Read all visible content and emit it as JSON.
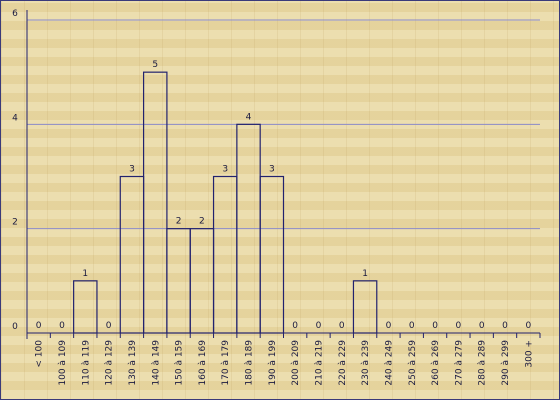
{
  "chart_data": {
    "type": "bar",
    "categories": [
      "< 100",
      "100 à 109",
      "110 à 119",
      "120 à 129",
      "130 à 139",
      "140 à 149",
      "150 à 159",
      "160 à 169",
      "170 à 179",
      "180 à 189",
      "190 à 199",
      "200 à 209",
      "210 à 219",
      "220 à 229",
      "230 à 239",
      "240 à 249",
      "250 à 259",
      "260 à 269",
      "270 à 279",
      "280 à 289",
      "290 à 299",
      "300 +"
    ],
    "values": [
      0,
      0,
      1,
      0,
      3,
      5,
      2,
      2,
      3,
      4,
      3,
      0,
      0,
      0,
      1,
      0,
      0,
      0,
      0,
      0,
      0,
      0
    ],
    "color": "#22226e",
    "ylim": [
      0,
      6
    ],
    "yticks": [
      0,
      2,
      4,
      6
    ],
    "grid": true
  }
}
